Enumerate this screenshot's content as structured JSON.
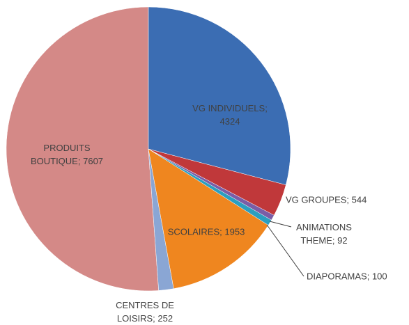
{
  "chart_data": {
    "type": "pie",
    "categories": [
      "VG INDIVIDUELS",
      "VG GROUPES",
      "ANIMATIONS THEME",
      "DIAPORAMAS",
      "SCOLAIRES",
      "CENTRES DE LOISIRS",
      "PRODUITS BOUTIQUE"
    ],
    "values": [
      4324,
      544,
      92,
      100,
      1953,
      252,
      7607
    ],
    "colors": [
      "#3b6db3",
      "#c0383a",
      "#7a5da6",
      "#2b9fc0",
      "#ef861f",
      "#8aa6d4",
      "#d48987"
    ],
    "label_separator": ";"
  }
}
